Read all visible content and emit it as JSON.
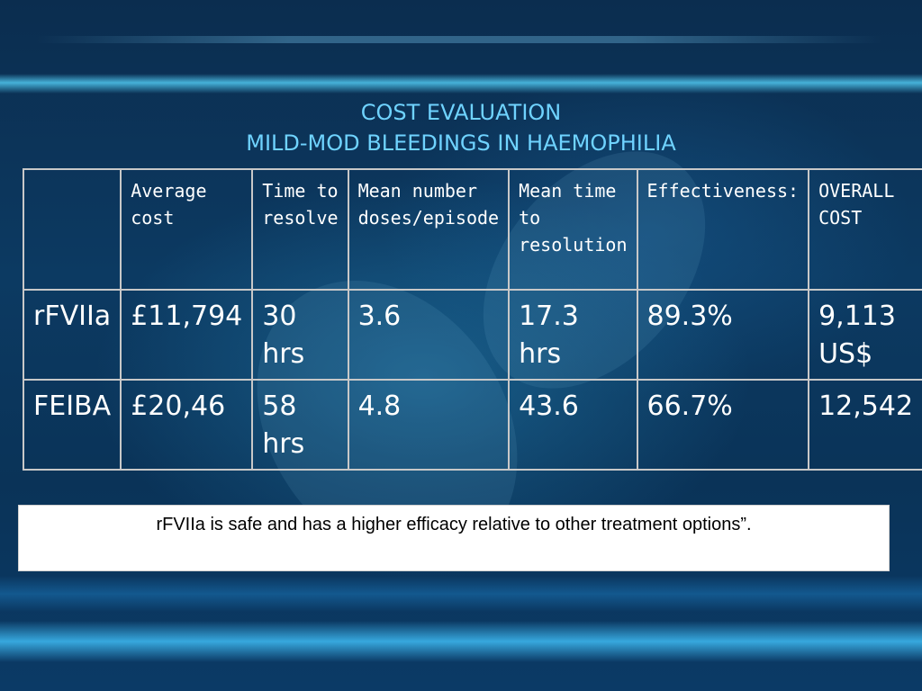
{
  "slide": {
    "title_line1": "COST EVALUATION",
    "title_line2": "MILD-MOD BLEEDINGS IN HAEMOPHILIA"
  },
  "table": {
    "headers": [
      "",
      "Average cost",
      "Time to resolve",
      "Mean number doses/episode",
      "Mean time to resolution",
      "Effectiveness:",
      "OVERALL COST"
    ],
    "rows": [
      [
        "rFVIIa",
        "£11,794",
        "30 hrs",
        "3.6",
        "17.3 hrs",
        "89.3%",
        "9,113 US$"
      ],
      [
        "FEIBA",
        "£20,46",
        "58 hrs",
        "4.8",
        "43.6",
        "66.7%",
        "12,542"
      ]
    ]
  },
  "note": {
    "text": "rFVIIa is safe and has a higher efficacy relative to other treatment options”."
  },
  "colors": {
    "title": "#6fd3ff",
    "background": "#0b3358",
    "table_border": "#c8c8c8",
    "text": "#ffffff"
  }
}
